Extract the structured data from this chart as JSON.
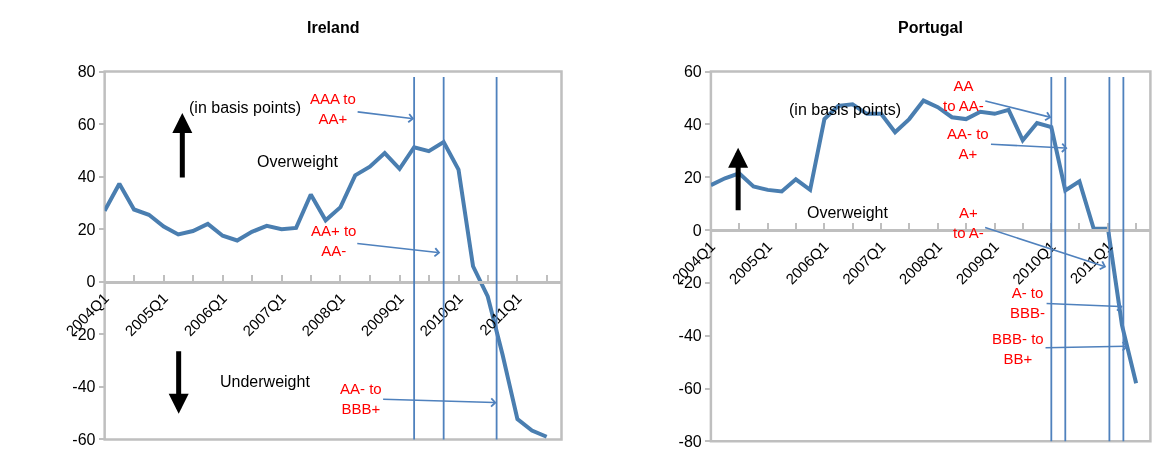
{
  "chart_data": [
    {
      "type": "line",
      "title": "Ireland",
      "color": "#4a7eb0",
      "x": [
        "2004-01",
        "2004-04",
        "2004-07",
        "2004-10",
        "2005-01",
        "2005-04",
        "2005-07",
        "2005-10",
        "2006-01",
        "2006-04",
        "2006-07",
        "2006-10",
        "2007-01",
        "2007-04",
        "2007-07",
        "2007-10",
        "2008-01",
        "2008-04",
        "2008-07",
        "2008-10",
        "2009-01",
        "2009-04",
        "2009-07",
        "2009-10",
        "2010-01",
        "2010-04",
        "2010-07",
        "2010-10",
        "2011-01",
        "2011-04",
        "2011-07"
      ],
      "values": [
        27,
        37.3,
        27.5,
        25.5,
        21,
        18,
        19.3,
        22,
        17.5,
        15.7,
        19,
        21.3,
        20,
        20.5,
        33.2,
        23.4,
        28.4,
        40.5,
        43.8,
        49,
        43,
        51.2,
        49.7,
        53.2,
        42.7,
        5.9,
        -5.6,
        -27.8,
        -52.3,
        -56.6,
        -59
      ],
      "xlim": [
        "2004-01",
        "2011-10"
      ],
      "ylim": [
        -60,
        80
      ],
      "yticks": [
        -60,
        -40,
        -20,
        0,
        20,
        40,
        60,
        80
      ],
      "xticks": [
        {
          "value": "2004-01",
          "label": "2004Q1"
        },
        {
          "value": "2004-07",
          "label": null
        },
        {
          "value": "2005-01",
          "label": "2005Q1"
        },
        {
          "value": "2005-07",
          "label": null
        },
        {
          "value": "2006-01",
          "label": "2006Q1"
        },
        {
          "value": "2006-07",
          "label": null
        },
        {
          "value": "2007-01",
          "label": "2007Q1"
        },
        {
          "value": "2007-07",
          "label": null
        },
        {
          "value": "2008-01",
          "label": "2008Q1"
        },
        {
          "value": "2008-07",
          "label": null
        },
        {
          "value": "2009-01",
          "label": "2009Q1"
        },
        {
          "value": "2009-07",
          "label": null
        },
        {
          "value": "2010-01",
          "label": "2010Q1"
        },
        {
          "value": "2010-07",
          "label": null
        },
        {
          "value": "2011-01",
          "label": "2011Q1"
        },
        {
          "value": "2011-07",
          "label": null
        }
      ],
      "ref_lines": [
        {
          "axis": "x",
          "value": "2009-04",
          "color": "#4f81bd"
        },
        {
          "axis": "x",
          "value": "2009-10",
          "color": "#4f81bd"
        },
        {
          "axis": "x",
          "value": "2010-08-25",
          "color": "#4f81bd"
        }
      ],
      "annotations": [
        "(in basis points)",
        "Overweight",
        "Underweight",
        {
          "text": "AAA to\nAA+",
          "x": "2009-04",
          "y": 62
        },
        {
          "text": "AA+ to\nAA-",
          "x": "2009-09-10",
          "y": 11
        },
        {
          "text": "AA- to\nBBB+",
          "x": "2010-08-25",
          "y": -46
        }
      ],
      "grid": false,
      "marker": "none",
      "line_style": "solid"
    },
    {
      "type": "line",
      "title": "Portugal",
      "color": "#4a7eb0",
      "x": [
        "2004-01",
        "2004-04",
        "2004-07",
        "2004-10",
        "2005-01",
        "2005-04",
        "2005-07",
        "2005-10",
        "2006-01",
        "2006-04",
        "2006-07",
        "2006-10",
        "2007-01",
        "2007-04",
        "2007-07",
        "2007-10",
        "2008-01",
        "2008-04",
        "2008-07",
        "2008-10",
        "2009-01",
        "2009-04",
        "2009-07",
        "2009-10",
        "2010-01",
        "2010-04",
        "2010-07",
        "2010-10",
        "2011-01",
        "2011-04",
        "2011-07"
      ],
      "values": [
        17,
        19.6,
        21.5,
        16.5,
        15.2,
        14.6,
        19.2,
        15.2,
        42,
        47,
        47.6,
        44,
        44,
        37,
        42,
        49,
        46.5,
        42.7,
        42,
        44.8,
        44,
        45.5,
        34,
        40.5,
        39,
        15,
        18.4,
        0.5,
        0.5,
        -36,
        -58
      ],
      "xlim": [
        "2004-01",
        "2011-10"
      ],
      "ylim": [
        -80,
        60
      ],
      "yticks": [
        -80,
        -60,
        -40,
        -20,
        0,
        20,
        40,
        60
      ],
      "xticks": [
        {
          "value": "2004-01",
          "label": "2004Q1"
        },
        {
          "value": "2004-07",
          "label": null
        },
        {
          "value": "2005-01",
          "label": "2005Q1"
        },
        {
          "value": "2005-07",
          "label": null
        },
        {
          "value": "2006-01",
          "label": "2006Q1"
        },
        {
          "value": "2006-07",
          "label": null
        },
        {
          "value": "2007-01",
          "label": "2007Q1"
        },
        {
          "value": "2007-07",
          "label": null
        },
        {
          "value": "2008-01",
          "label": "2008Q1"
        },
        {
          "value": "2008-07",
          "label": null
        },
        {
          "value": "2009-01",
          "label": "2009Q1"
        },
        {
          "value": "2009-07",
          "label": null
        },
        {
          "value": "2010-01",
          "label": "2010Q1"
        },
        {
          "value": "2010-07",
          "label": null
        },
        {
          "value": "2011-01",
          "label": "2011Q1"
        },
        {
          "value": "2011-07",
          "label": null
        }
      ],
      "ref_lines": [
        {
          "axis": "x",
          "value": "2010-01",
          "color": "#4f81bd"
        },
        {
          "axis": "x",
          "value": "2010-04",
          "color": "#4f81bd"
        },
        {
          "axis": "x",
          "value": "2011-01-10",
          "color": "#4f81bd"
        },
        {
          "axis": "x",
          "value": "2011-04-10",
          "color": "#4f81bd"
        }
      ],
      "annotations": [
        "(in basis points)",
        "Overweight",
        {
          "text": "AA\nto AA-",
          "x": "2010-01",
          "y": 42.6
        },
        {
          "text": "AA- to\nA+",
          "x": "2010-04-15",
          "y": 31
        },
        {
          "text": "A+\nto A-",
          "x": "2010-12-20",
          "y": -14
        },
        {
          "text": "A- to\nBBB-",
          "x": "2011-04-05",
          "y": -29
        },
        {
          "text": "BBB- to\nBB+",
          "x": "2011-05-10",
          "y": -44
        }
      ],
      "grid": false,
      "marker": "none",
      "line_style": "solid"
    }
  ]
}
